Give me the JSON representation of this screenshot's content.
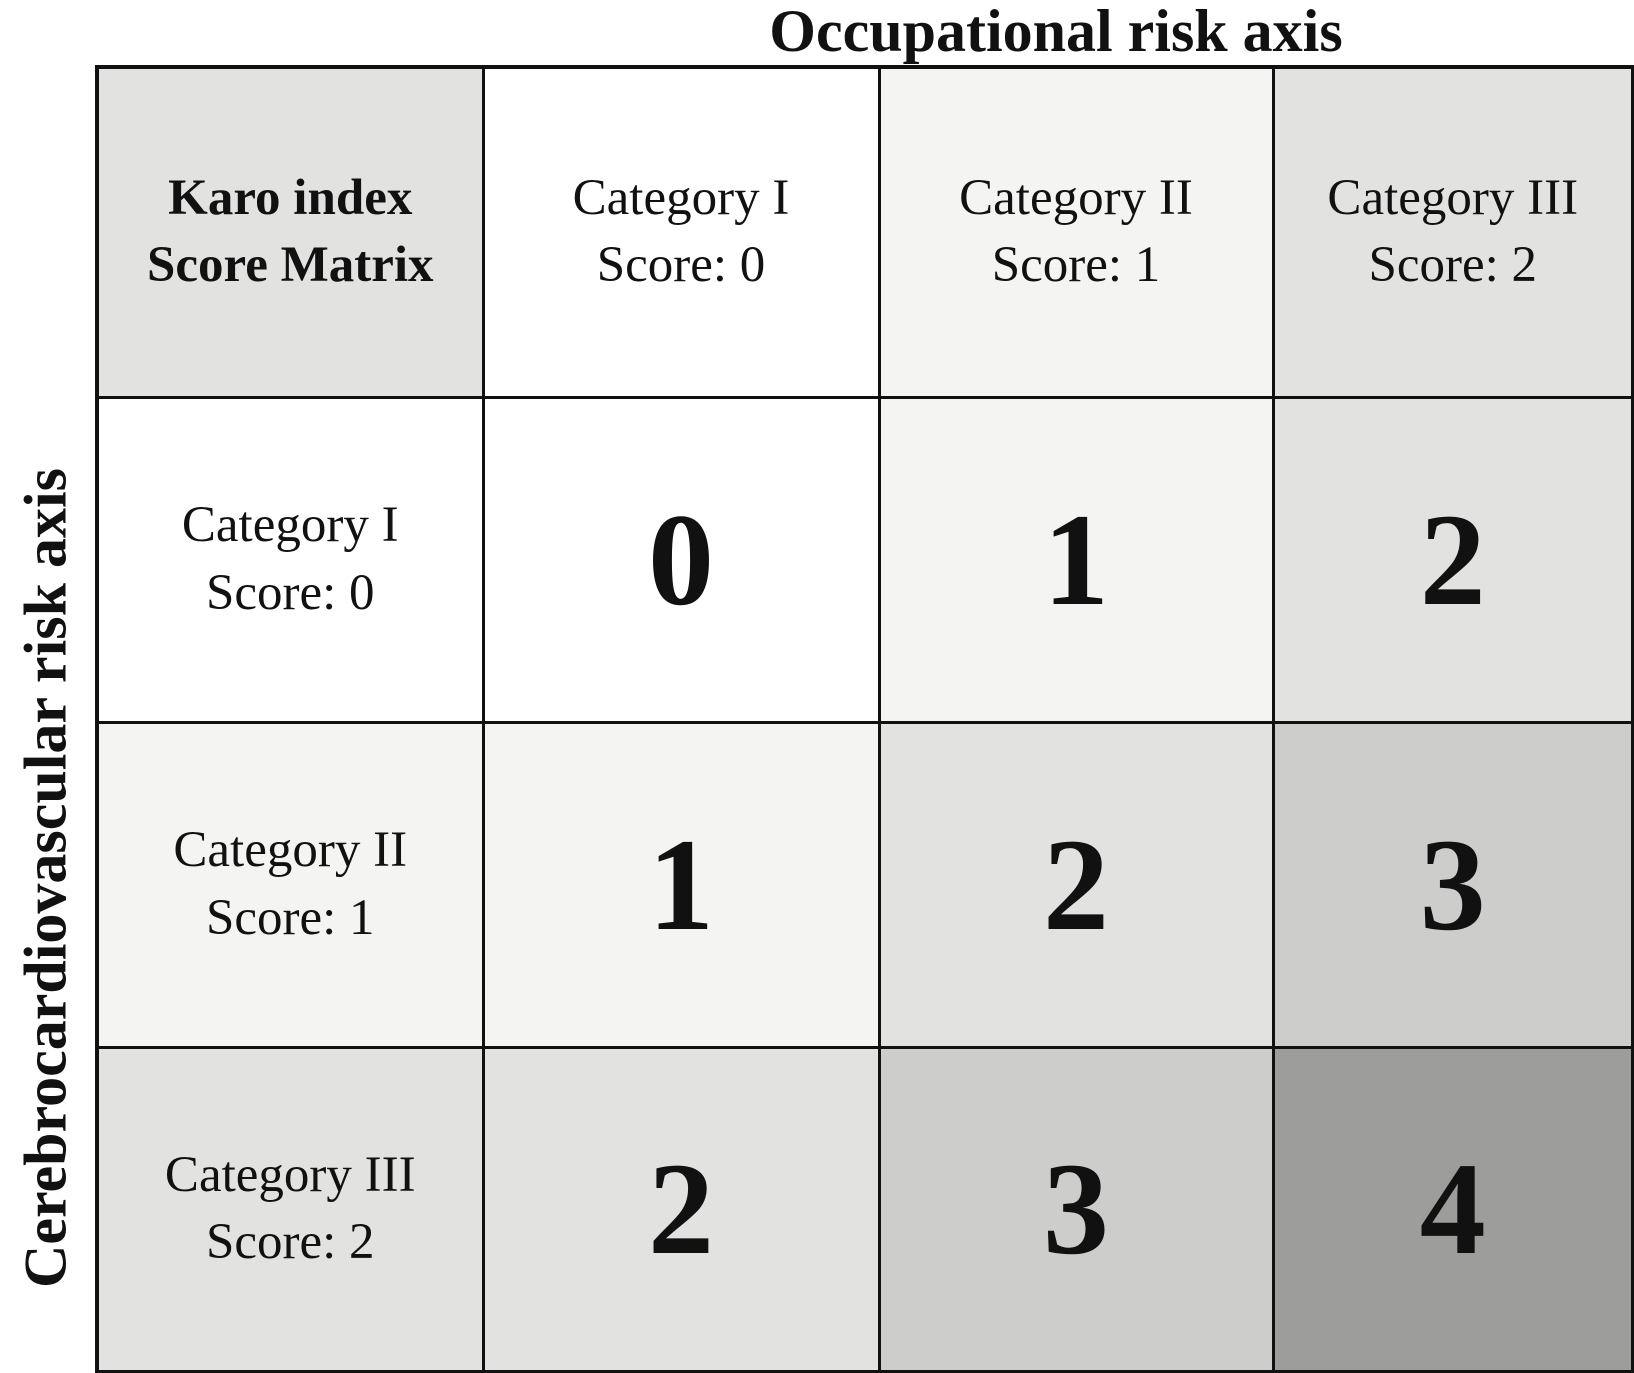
{
  "axes": {
    "top_title": "Occupational risk axis",
    "left_title": "Cerebrocardiovascular risk axis"
  },
  "corner": {
    "line1": "Karo index",
    "line2": "Score Matrix",
    "color": "#e2e2e1"
  },
  "columns": [
    {
      "label": "Category I",
      "score": "Score: 0",
      "color": "#ffffff"
    },
    {
      "label": "Category II",
      "score": "Score: 1",
      "color": "#f4f4f3"
    },
    {
      "label": "Category III",
      "score": "Score: 2",
      "color": "#e2e2e1"
    }
  ],
  "rows": [
    {
      "label": "Category I",
      "score": "Score: 0",
      "color": "#ffffff",
      "cells": [
        {
          "value": "0",
          "color": "#ffffff"
        },
        {
          "value": "1",
          "color": "#f4f4f3"
        },
        {
          "value": "2",
          "color": "#e2e2e1"
        }
      ]
    },
    {
      "label": "Category II",
      "score": "Score: 1",
      "color": "#f4f4f3",
      "cells": [
        {
          "value": "1",
          "color": "#f4f4f3"
        },
        {
          "value": "2",
          "color": "#e2e2e1"
        },
        {
          "value": "3",
          "color": "#cdcdcc"
        }
      ]
    },
    {
      "label": "Category III",
      "score": "Score: 2",
      "color": "#e2e2e1",
      "cells": [
        {
          "value": "2",
          "color": "#e2e2e1"
        },
        {
          "value": "3",
          "color": "#cdcdcc"
        },
        {
          "value": "4",
          "color": "#9d9d9b"
        }
      ]
    }
  ],
  "chart_data": {
    "type": "heatmap",
    "title": "Karo index Score Matrix",
    "x_axis_label": "Occupational risk axis",
    "y_axis_label": "Cerebrocardiovascular risk axis",
    "x_categories": [
      "Category I (Score: 0)",
      "Category II (Score: 1)",
      "Category III (Score: 2)"
    ],
    "y_categories": [
      "Category I (Score: 0)",
      "Category II (Score: 1)",
      "Category III (Score: 2)"
    ],
    "values": [
      [
        0,
        1,
        2
      ],
      [
        1,
        2,
        3
      ],
      [
        2,
        3,
        4
      ]
    ],
    "value_rule": "cell score = row score + column score",
    "value_range": [
      0,
      4
    ],
    "shade_scale": {
      "0": "#ffffff",
      "1": "#f4f4f3",
      "2": "#e2e2e1",
      "3": "#cdcdcc",
      "4": "#9d9d9b"
    },
    "legend_position": "none",
    "grid": true
  },
  "style": {
    "border_color": "#111111",
    "text_color": "#111111",
    "background": "#ffffff"
  }
}
